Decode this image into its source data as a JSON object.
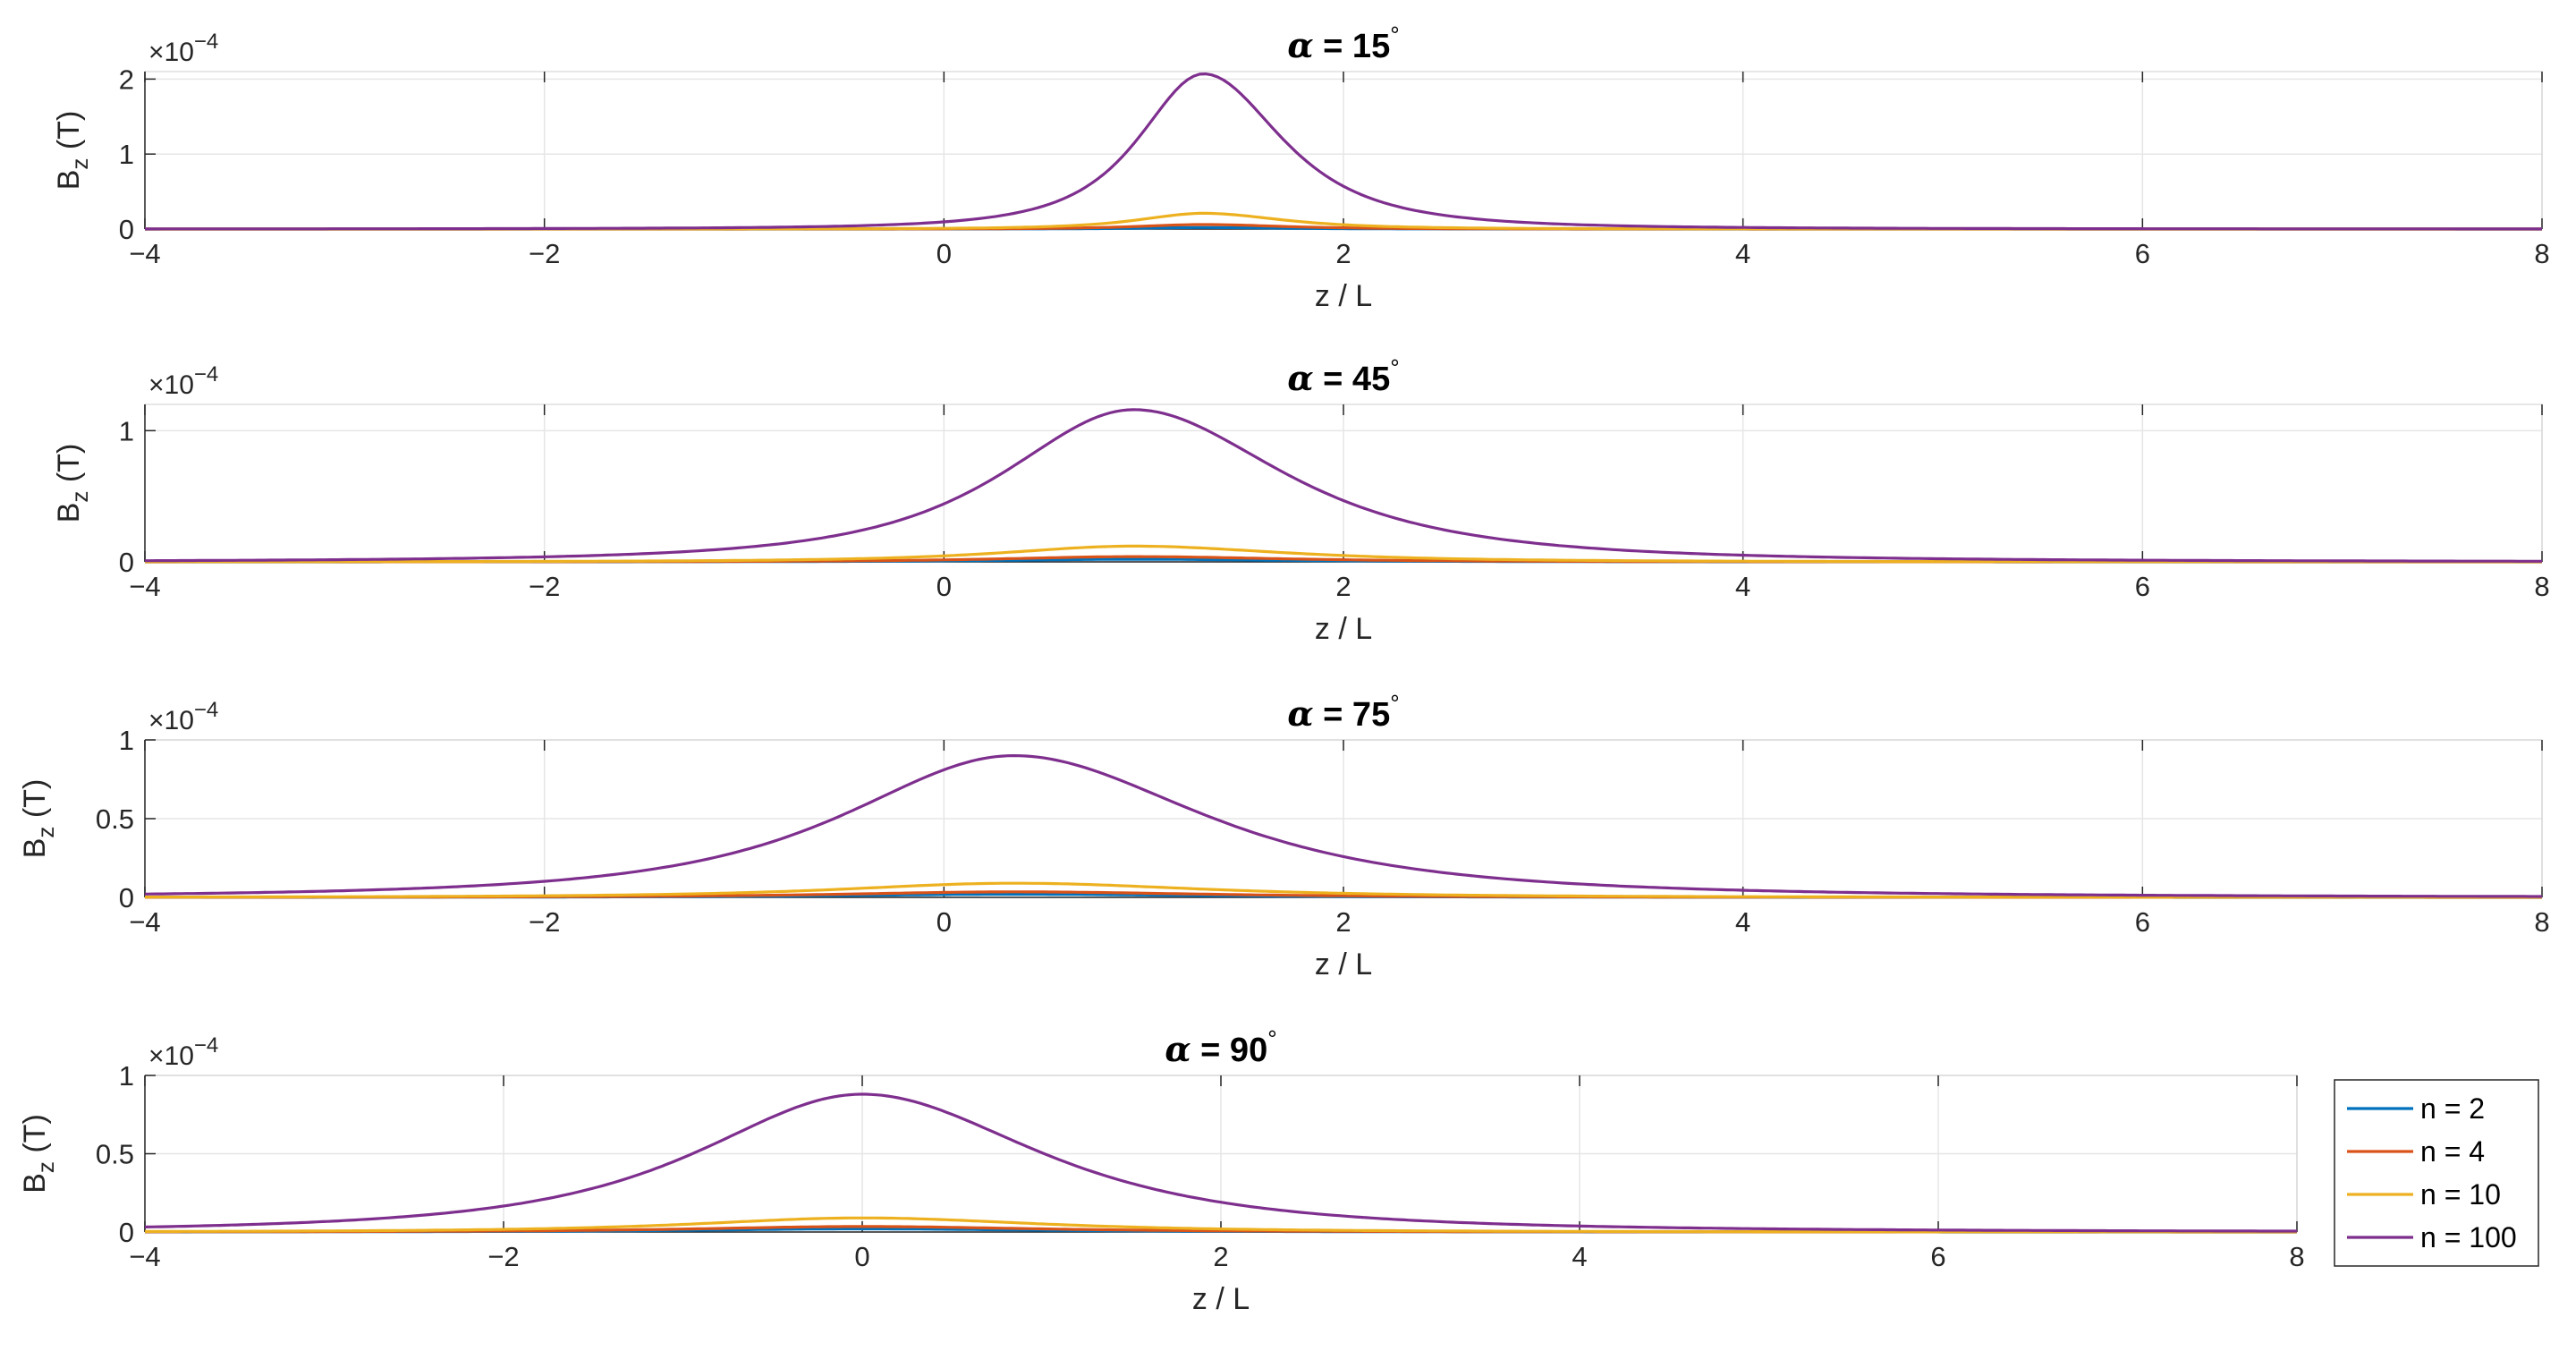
{
  "chart_data": [
    {
      "type": "line",
      "title": "α = 15°",
      "title_parts": {
        "prefix": "α",
        "eq": " = 15",
        "deg": "°"
      },
      "xlabel": "z / L",
      "ylabel": "B",
      "ylabel_sub": "z",
      "ylabel_unit": " (T)",
      "exponent": "×10",
      "exponent_power": "−4",
      "xlim": [
        -4,
        8
      ],
      "ylim": [
        0,
        2.1
      ],
      "xticks": [
        -4,
        -2,
        0,
        2,
        4,
        6,
        8
      ],
      "xtick_labels": [
        "−4",
        "−2",
        "0",
        "2",
        "4",
        "6",
        "8"
      ],
      "yticks": [
        0,
        1,
        2
      ],
      "ytick_labels": [
        "0",
        "1",
        "2"
      ],
      "grid": true,
      "series": [
        {
          "name": "n = 2",
          "color": "#0072BD",
          "peak_x": 1.3,
          "peak_y": 0.02,
          "width_left": 0.5,
          "width_right": 0.6
        },
        {
          "name": "n = 4",
          "color": "#D95319",
          "peak_x": 1.3,
          "peak_y": 0.06,
          "width_left": 0.5,
          "width_right": 0.6
        },
        {
          "name": "n = 10",
          "color": "#EDB120",
          "peak_x": 1.3,
          "peak_y": 0.21,
          "width_left": 0.5,
          "width_right": 0.6
        },
        {
          "name": "n = 100",
          "color": "#7E2F8E",
          "peak_x": 1.3,
          "peak_y": 2.07,
          "width_left": 0.5,
          "width_right": 0.6
        }
      ]
    },
    {
      "type": "line",
      "title": "α = 45°",
      "title_parts": {
        "prefix": "α",
        "eq": " = 45",
        "deg": "°"
      },
      "xlabel": "z / L",
      "ylabel": "B",
      "ylabel_sub": "z",
      "ylabel_unit": " (T)",
      "exponent": "×10",
      "exponent_power": "−4",
      "xlim": [
        -4,
        8
      ],
      "ylim": [
        0,
        1.2
      ],
      "xticks": [
        -4,
        -2,
        0,
        2,
        4,
        6,
        8
      ],
      "xtick_labels": [
        "−4",
        "−2",
        "0",
        "2",
        "4",
        "6",
        "8"
      ],
      "yticks": [
        0,
        1
      ],
      "ytick_labels": [
        "0",
        "1"
      ],
      "grid": true,
      "series": [
        {
          "name": "n = 2",
          "color": "#0072BD",
          "peak_x": 0.95,
          "peak_y": 0.02,
          "width_left": 1.0,
          "width_right": 1.15
        },
        {
          "name": "n = 4",
          "color": "#D95319",
          "peak_x": 0.95,
          "peak_y": 0.04,
          "width_left": 1.0,
          "width_right": 1.15
        },
        {
          "name": "n = 10",
          "color": "#EDB120",
          "peak_x": 0.95,
          "peak_y": 0.12,
          "width_left": 1.0,
          "width_right": 1.15
        },
        {
          "name": "n = 100",
          "color": "#7E2F8E",
          "peak_x": 0.95,
          "peak_y": 1.16,
          "width_left": 1.0,
          "width_right": 1.15
        }
      ]
    },
    {
      "type": "line",
      "title": "α = 75°",
      "title_parts": {
        "prefix": "α",
        "eq": " = 75",
        "deg": "°"
      },
      "xlabel": "z / L",
      "ylabel": "B",
      "ylabel_sub": "z",
      "ylabel_unit": " (T)",
      "exponent": "×10",
      "exponent_power": "−4",
      "xlim": [
        -4,
        8
      ],
      "ylim": [
        0,
        1.0
      ],
      "xticks": [
        -4,
        -2,
        0,
        2,
        4,
        6,
        8
      ],
      "xtick_labels": [
        "−4",
        "−2",
        "0",
        "2",
        "4",
        "6",
        "8"
      ],
      "yticks": [
        0,
        0.5,
        1
      ],
      "ytick_labels": [
        "0",
        "0.5",
        "1"
      ],
      "grid": true,
      "series": [
        {
          "name": "n = 2",
          "color": "#0072BD",
          "peak_x": 0.35,
          "peak_y": 0.02,
          "width_left": 1.3,
          "width_right": 1.45
        },
        {
          "name": "n = 4",
          "color": "#D95319",
          "peak_x": 0.35,
          "peak_y": 0.035,
          "width_left": 1.3,
          "width_right": 1.45
        },
        {
          "name": "n = 10",
          "color": "#EDB120",
          "peak_x": 0.35,
          "peak_y": 0.09,
          "width_left": 1.3,
          "width_right": 1.45
        },
        {
          "name": "n = 100",
          "color": "#7E2F8E",
          "peak_x": 0.35,
          "peak_y": 0.9,
          "width_left": 1.3,
          "width_right": 1.45
        }
      ]
    },
    {
      "type": "line",
      "title": "α = 90°",
      "title_parts": {
        "prefix": "α",
        "eq": " = 90",
        "deg": "°"
      },
      "xlabel": "z / L",
      "ylabel": "B",
      "ylabel_sub": "z",
      "ylabel_unit": " (T)",
      "exponent": "×10",
      "exponent_power": "−4",
      "xlim": [
        -4,
        8
      ],
      "ylim": [
        0,
        1.0
      ],
      "xticks": [
        -4,
        -2,
        0,
        2,
        4,
        6,
        8
      ],
      "xtick_labels": [
        "−4",
        "−2",
        "0",
        "2",
        "4",
        "6",
        "8"
      ],
      "yticks": [
        0,
        0.5,
        1
      ],
      "ytick_labels": [
        "0",
        "0.5",
        "1"
      ],
      "grid": true,
      "legend": {
        "placement": "outside-right",
        "entries": [
          "n = 2",
          "n = 4",
          "n = 10",
          "n = 100"
        ]
      },
      "series": [
        {
          "name": "n = 2",
          "color": "#0072BD",
          "peak_x": 0.0,
          "peak_y": 0.02,
          "width_left": 1.4,
          "width_right": 1.5
        },
        {
          "name": "n = 4",
          "color": "#D95319",
          "peak_x": 0.0,
          "peak_y": 0.035,
          "width_left": 1.4,
          "width_right": 1.5
        },
        {
          "name": "n = 10",
          "color": "#EDB120",
          "peak_x": 0.0,
          "peak_y": 0.09,
          "width_left": 1.4,
          "width_right": 1.5
        },
        {
          "name": "n = 100",
          "color": "#7E2F8E",
          "peak_x": 0.0,
          "peak_y": 0.88,
          "width_left": 1.4,
          "width_right": 1.5
        }
      ]
    }
  ]
}
